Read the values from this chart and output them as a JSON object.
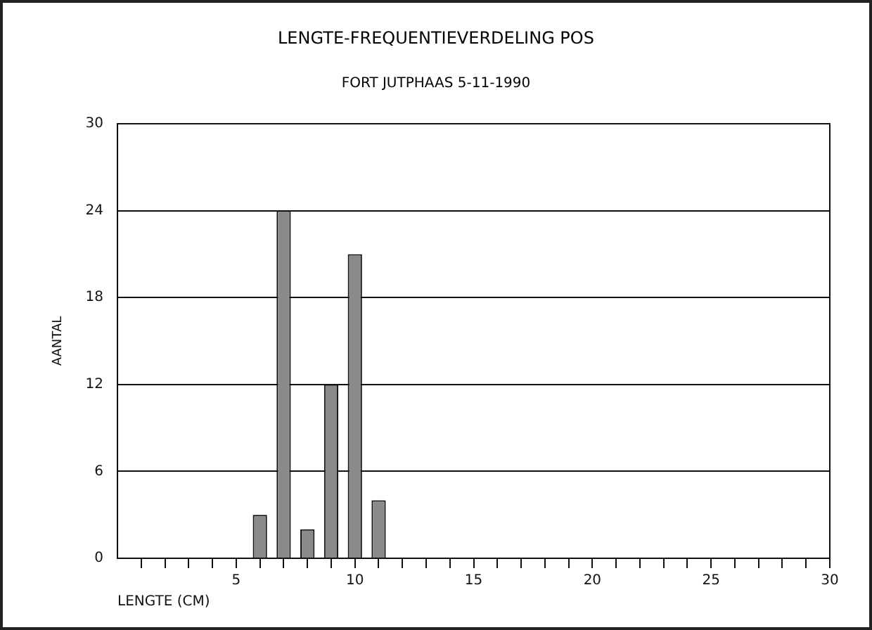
{
  "chart_data": {
    "type": "bar",
    "title": "LENGTE-FREQUENTIEVERDELING POS",
    "subtitle": "FORT JUTPHAAS 5-11-1990",
    "xlabel": "LENGTE (CM)",
    "ylabel": "AANTAL",
    "x": [
      6,
      7,
      8,
      9,
      10,
      11
    ],
    "values": [
      3,
      24,
      2,
      12,
      21,
      4
    ],
    "color": "#8a8a8a",
    "xlim": [
      0,
      30
    ],
    "xticks": [
      {
        "value": 1,
        "label": null
      },
      {
        "value": 2,
        "label": null
      },
      {
        "value": 3,
        "label": null
      },
      {
        "value": 4,
        "label": null
      },
      5,
      {
        "value": 6,
        "label": null
      },
      {
        "value": 7,
        "label": null
      },
      {
        "value": 8,
        "label": null
      },
      {
        "value": 9,
        "label": null
      },
      10,
      {
        "value": 11,
        "label": null
      },
      {
        "value": 12,
        "label": null
      },
      {
        "value": 13,
        "label": null
      },
      {
        "value": 14,
        "label": null
      },
      15,
      {
        "value": 16,
        "label": null
      },
      {
        "value": 17,
        "label": null
      },
      {
        "value": 18,
        "label": null
      },
      {
        "value": 19,
        "label": null
      },
      20,
      {
        "value": 21,
        "label": null
      },
      {
        "value": 22,
        "label": null
      },
      {
        "value": 23,
        "label": null
      },
      {
        "value": 24,
        "label": null
      },
      25,
      {
        "value": 26,
        "label": null
      },
      {
        "value": 27,
        "label": null
      },
      {
        "value": 28,
        "label": null
      },
      {
        "value": 29,
        "label": null
      },
      30
    ],
    "ylim": [
      0,
      30
    ],
    "yticks": [
      0,
      6,
      12,
      18,
      24,
      30
    ],
    "grid": "y"
  }
}
